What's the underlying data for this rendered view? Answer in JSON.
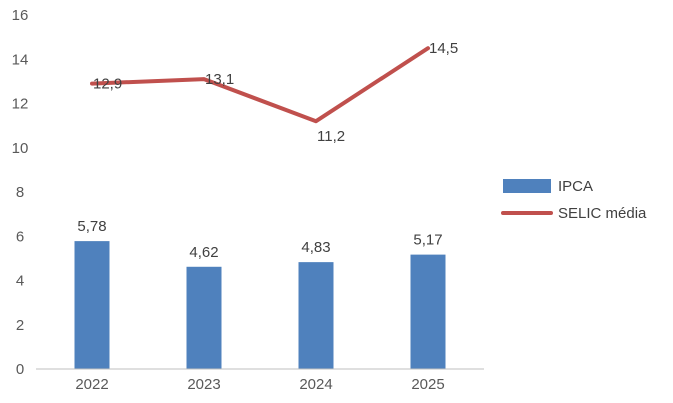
{
  "chart_data": {
    "type": "bar",
    "categories": [
      "2022",
      "2023",
      "2024",
      "2025"
    ],
    "ylim": [
      0,
      16
    ],
    "yticks": [
      0,
      2,
      4,
      6,
      8,
      10,
      12,
      14,
      16
    ],
    "grid": false,
    "legend_position": "right",
    "series": [
      {
        "name": "IPCA",
        "type": "bar",
        "values": [
          5.78,
          4.62,
          4.83,
          5.17
        ],
        "labels": [
          "5,78",
          "4,62",
          "4,83",
          "5,17"
        ],
        "color": "#4F81BD"
      },
      {
        "name": "SELIC média",
        "type": "line",
        "values": [
          12.9,
          13.1,
          11.2,
          14.5
        ],
        "labels": [
          "12,9",
          "13,1",
          "11,2",
          "14,5"
        ],
        "color": "#C0504D"
      }
    ]
  }
}
